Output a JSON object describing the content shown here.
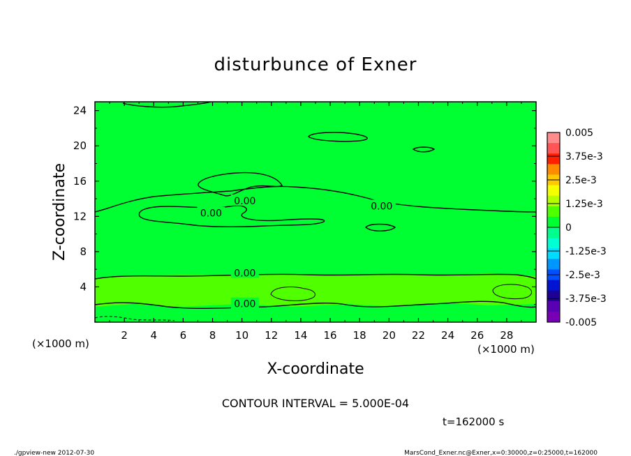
{
  "chart_data": {
    "type": "heatmap",
    "title": "disturbunce of Exner",
    "xlabel": "X-coordinate",
    "ylabel": "Z-coordinate",
    "x_unit": "(×1000 m)",
    "y_unit": "(×1000 m)",
    "xlim": [
      0,
      30
    ],
    "ylim": [
      0,
      25
    ],
    "x_ticks": [
      2,
      4,
      6,
      8,
      10,
      12,
      14,
      16,
      18,
      20,
      22,
      24,
      26,
      28
    ],
    "y_ticks": [
      4,
      8,
      12,
      16,
      20,
      24
    ],
    "contour_labels": [
      {
        "text": "0.00",
        "x": 7.9,
        "z": 12.3
      },
      {
        "text": "0.00",
        "x": 10.2,
        "z": 13.7
      },
      {
        "text": "0.00",
        "x": 19.5,
        "z": 13.1
      },
      {
        "text": "0.00",
        "x": 10.2,
        "z": 5.5
      },
      {
        "text": "0.00",
        "x": 10.2,
        "z": 2.0
      }
    ],
    "colorbar": {
      "labels": [
        "0.005",
        "3.75e-3",
        "2.5e-3",
        "1.25e-3",
        "0",
        "-1.25e-3",
        "-2.5e-3",
        "-3.75e-3",
        "-0.005"
      ],
      "colors": [
        "#ff8c8c",
        "#ff5555",
        "#ff2000",
        "#ff8c00",
        "#ffc800",
        "#f5ff00",
        "#b4ff00",
        "#50ff00",
        "#00ff32",
        "#00ff8c",
        "#00ffd2",
        "#00dcff",
        "#0096ff",
        "#0050ff",
        "#0014d2",
        "#1e0096",
        "#5a00b4",
        "#7800b4"
      ]
    },
    "field_colors": {
      "near_zero_negative": "#00ff32",
      "near_zero_positive": "#50ff00"
    },
    "contour_interval_text": "CONTOUR INTERVAL = 5.000E-04",
    "time_text": "t=162000 s"
  },
  "footer": {
    "left": "./gpview-new  2012-07-30",
    "right": "MarsCond_Exner.nc@Exner,x=0:30000,z=0:25000,t=162000"
  }
}
